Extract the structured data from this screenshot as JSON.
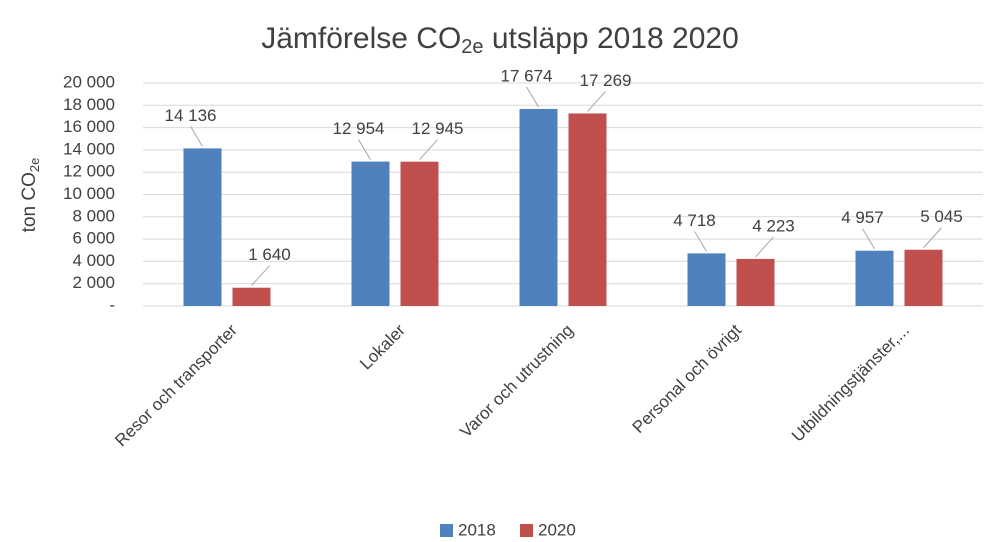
{
  "chart_data": {
    "type": "bar",
    "title": [
      "Jämförelse CO",
      "2e",
      " utsläpp 2018 2020"
    ],
    "y_label": [
      "ton CO",
      "2e"
    ],
    "categories": [
      "Resor och transporter",
      "Lokaler",
      "Varor och utrustning",
      "Personal och övrigt",
      "Utbildningstjänster,..."
    ],
    "series": [
      {
        "name": "2018",
        "color": "#4f81bd",
        "values": [
          14136,
          12954,
          17674,
          4718,
          4957
        ],
        "value_labels": [
          "14 136",
          "12 954",
          "17 674",
          "4 718",
          "4 957"
        ]
      },
      {
        "name": "2020",
        "color": "#c0504d",
        "values": [
          1640,
          12945,
          17269,
          4223,
          5045
        ],
        "value_labels": [
          "1 640",
          "12 945",
          "17 269",
          "4 223",
          "5 045"
        ]
      }
    ],
    "ylim": [
      0,
      20000
    ],
    "yticks": [
      {
        "value": 0,
        "label": "-"
      },
      {
        "value": 2000,
        "label": "2 000"
      },
      {
        "value": 4000,
        "label": "4 000"
      },
      {
        "value": 6000,
        "label": "6 000"
      },
      {
        "value": 8000,
        "label": "8 000"
      },
      {
        "value": 10000,
        "label": "10 000"
      },
      {
        "value": 12000,
        "label": "12 000"
      },
      {
        "value": 14000,
        "label": "14 000"
      },
      {
        "value": 16000,
        "label": "16 000"
      },
      {
        "value": 18000,
        "label": "18 000"
      },
      {
        "value": 20000,
        "label": "20 000"
      }
    ],
    "grid": true,
    "legend": "bottom"
  }
}
